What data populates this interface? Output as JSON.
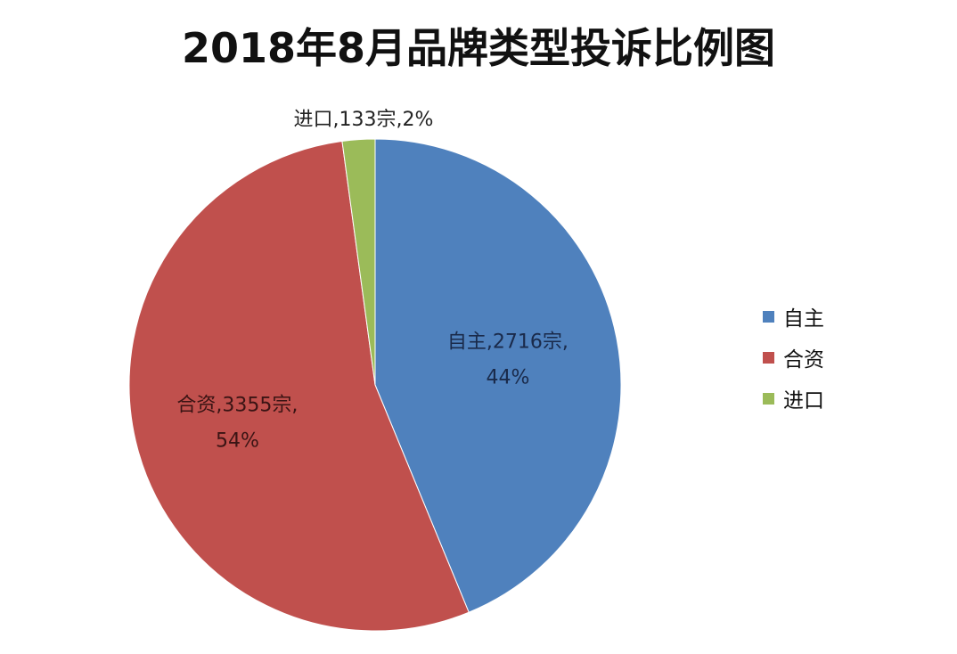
{
  "chart_data": {
    "type": "pie",
    "title": "2018年8月品牌类型投诉比例图",
    "slices": [
      {
        "name": "自主",
        "value": 2716,
        "unit": "宗",
        "percent": "44%",
        "color": "#4F81BD"
      },
      {
        "name": "合资",
        "value": 3355,
        "unit": "宗",
        "percent": "54%",
        "color": "#C0504D"
      },
      {
        "name": "进口",
        "value": 133,
        "unit": "宗",
        "percent": "2%",
        "color": "#9BBB59"
      }
    ],
    "labels": [
      {
        "lines": [
          "自主,2716宗,",
          "44%"
        ],
        "color": "#1a2a4a"
      },
      {
        "lines": [
          "合资,3355宗,",
          "54%"
        ],
        "color": "#3a1414"
      },
      {
        "lines": [
          "进口,133宗,2%"
        ],
        "color": "#222222"
      }
    ],
    "legend_position": "right"
  }
}
